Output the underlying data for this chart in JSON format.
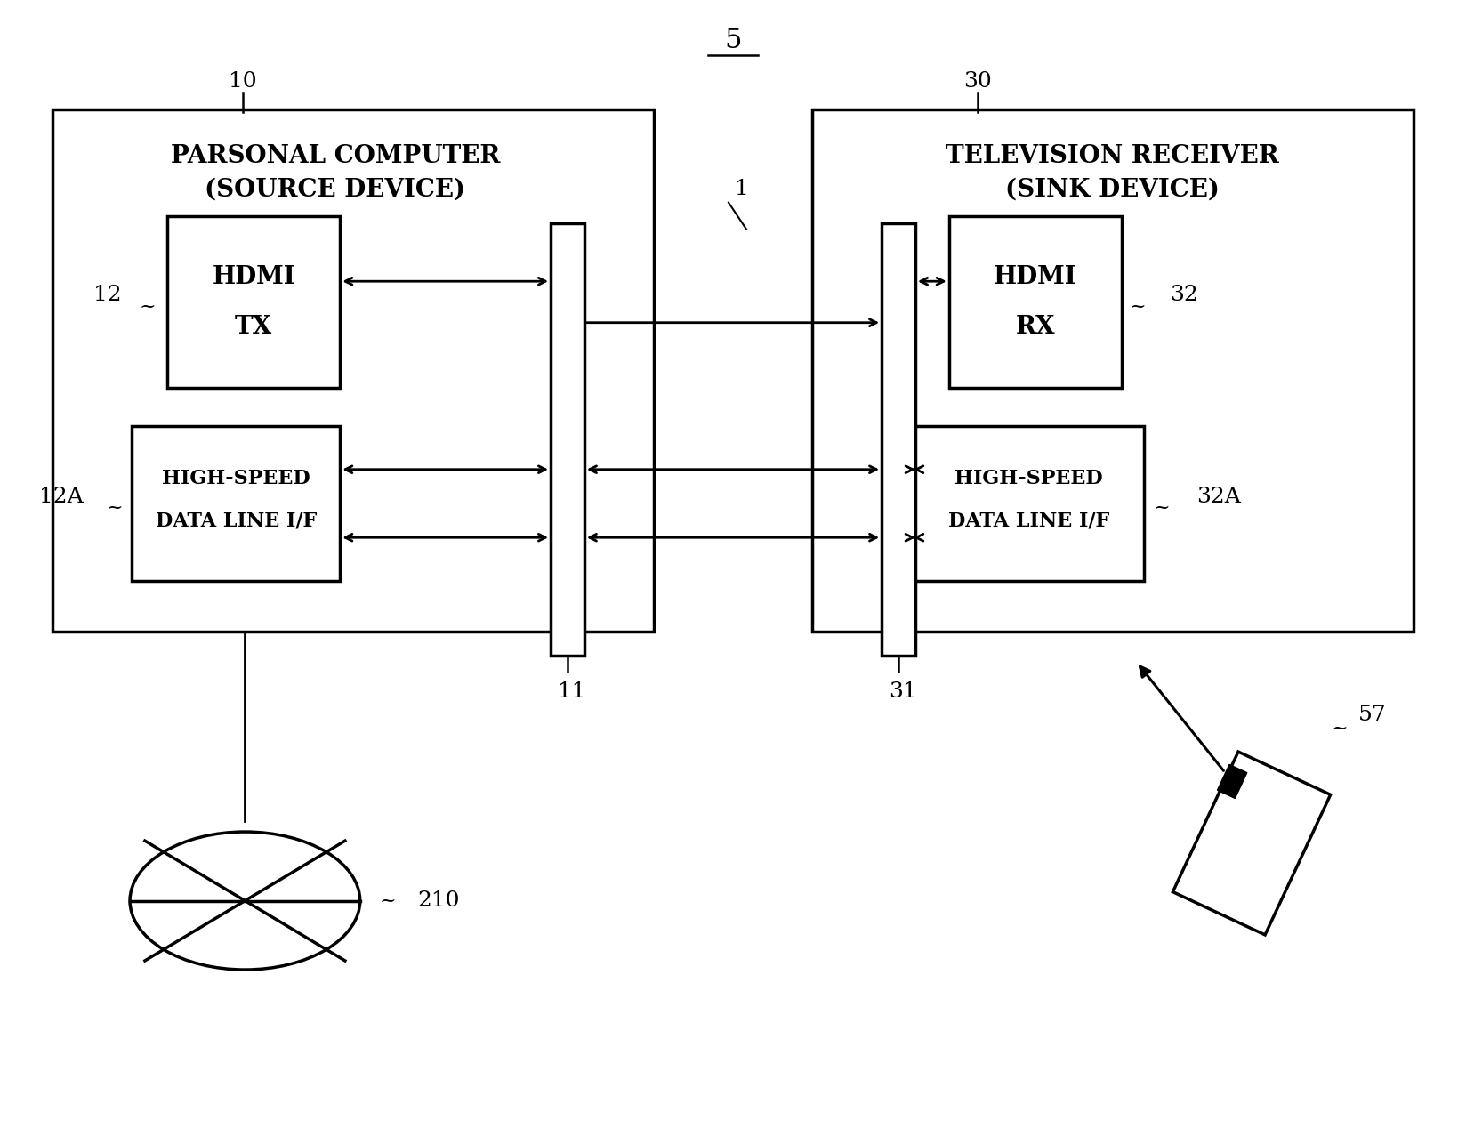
{
  "bg_color": "#ffffff",
  "fig_width": 16.48,
  "fig_height": 12.77,
  "title_label": "5",
  "label_10": "10",
  "label_30": "30",
  "label_1": "1",
  "label_11": "11",
  "label_31": "31",
  "label_12": "12",
  "label_12A": "12A",
  "label_32": "32",
  "label_32A": "32A",
  "label_210": "210",
  "label_57": "57",
  "pc_title_line1": "PARSONAL COMPUTER",
  "pc_title_line2": "(SOURCE DEVICE)",
  "tv_title_line1": "TELEVISION RECEIVER",
  "tv_title_line2": "(SINK DEVICE)",
  "hdmi_tx_text1": "HDMI",
  "hdmi_tx_text2": "TX",
  "hdmi_rx_text1": "HDMI",
  "hdmi_rx_text2": "RX",
  "hs_left_text1": "HIGH-SPEED",
  "hs_left_text2": "DATA LINE I/F",
  "hs_right_text1": "HIGH-SPEED",
  "hs_right_text2": "DATA LINE I/F"
}
